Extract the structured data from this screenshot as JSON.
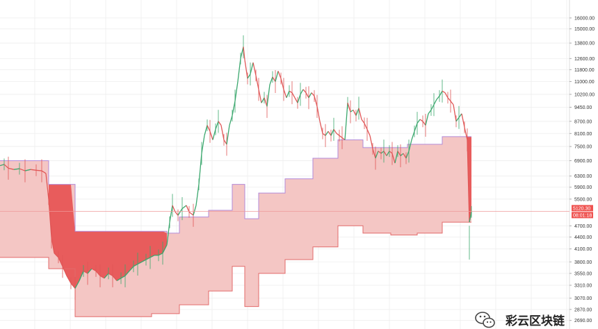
{
  "chart_data": {
    "type": "line",
    "title": "",
    "xlabel": "",
    "ylabel": "",
    "y_scale": "log",
    "ylim": [
      2600,
      17500
    ],
    "grid": true,
    "y_ticks": [
      {
        "label": "16000.00",
        "value": 16000
      },
      {
        "label": "15000.00",
        "value": 15000
      },
      {
        "label": "13800.00",
        "value": 13800
      },
      {
        "label": "12600.00",
        "value": 12600
      },
      {
        "label": "11800.00",
        "value": 11800
      },
      {
        "label": "11000.00",
        "value": 11000
      },
      {
        "label": "10200.00",
        "value": 10200
      },
      {
        "label": "9450.00",
        "value": 9450
      },
      {
        "label": "8700.00",
        "value": 8700
      },
      {
        "label": "8100.00",
        "value": 8100
      },
      {
        "label": "7500.00",
        "value": 7500
      },
      {
        "label": "6900.00",
        "value": 6900
      },
      {
        "label": "6300.00",
        "value": 6300
      },
      {
        "label": "5900.00",
        "value": 5900
      },
      {
        "label": "5500.00",
        "value": 5500
      },
      {
        "label": "4700.00",
        "value": 4700
      },
      {
        "label": "4400.00",
        "value": 4400
      },
      {
        "label": "4100.00",
        "value": 4100
      },
      {
        "label": "3800.00",
        "value": 3800
      },
      {
        "label": "3550.00",
        "value": 3550
      },
      {
        "label": "3310.00",
        "value": 3310
      },
      {
        "label": "3070.00",
        "value": 3070
      },
      {
        "label": "2870.00",
        "value": 2870
      },
      {
        "label": "2690.00",
        "value": 2690
      }
    ],
    "price": [
      [
        0,
        6700
      ],
      [
        6,
        6750
      ],
      [
        12,
        6600
      ],
      [
        20,
        6550
      ],
      [
        28,
        6580
      ],
      [
        36,
        6500
      ],
      [
        44,
        6550
      ],
      [
        52,
        6520
      ],
      [
        60,
        6500
      ],
      [
        66,
        6400
      ],
      [
        70,
        5500
      ],
      [
        74,
        4400
      ],
      [
        78,
        4000
      ],
      [
        84,
        3900
      ],
      [
        90,
        3700
      ],
      [
        96,
        3500
      ],
      [
        102,
        3350
      ],
      [
        108,
        3250
      ],
      [
        114,
        3400
      ],
      [
        120,
        3600
      ],
      [
        126,
        3550
      ],
      [
        132,
        3650
      ],
      [
        138,
        3600
      ],
      [
        144,
        3500
      ],
      [
        150,
        3450
      ],
      [
        156,
        3550
      ],
      [
        162,
        3500
      ],
      [
        168,
        3400
      ],
      [
        174,
        3450
      ],
      [
        180,
        3500
      ],
      [
        186,
        3600
      ],
      [
        192,
        3700
      ],
      [
        198,
        3750
      ],
      [
        204,
        3800
      ],
      [
        210,
        3850
      ],
      [
        216,
        3900
      ],
      [
        222,
        3950
      ],
      [
        228,
        3950
      ],
      [
        234,
        4000
      ],
      [
        240,
        4200
      ],
      [
        244,
        4800
      ],
      [
        248,
        5300
      ],
      [
        252,
        5100
      ],
      [
        256,
        5000
      ],
      [
        262,
        5200
      ],
      [
        268,
        5300
      ],
      [
        272,
        5100
      ],
      [
        278,
        5000
      ],
      [
        282,
        5300
      ],
      [
        286,
        6000
      ],
      [
        290,
        7200
      ],
      [
        294,
        8000
      ],
      [
        298,
        8500
      ],
      [
        302,
        8200
      ],
      [
        306,
        7800
      ],
      [
        310,
        8300
      ],
      [
        314,
        8700
      ],
      [
        318,
        8500
      ],
      [
        322,
        7800
      ],
      [
        326,
        7600
      ],
      [
        330,
        8500
      ],
      [
        334,
        9000
      ],
      [
        338,
        9800
      ],
      [
        342,
        11000
      ],
      [
        346,
        12600
      ],
      [
        350,
        13500
      ],
      [
        352,
        12500
      ],
      [
        356,
        11200
      ],
      [
        360,
        11500
      ],
      [
        364,
        12300
      ],
      [
        368,
        11400
      ],
      [
        372,
        10500
      ],
      [
        376,
        9700
      ],
      [
        380,
        10000
      ],
      [
        384,
        9500
      ],
      [
        388,
        10800
      ],
      [
        392,
        11300
      ],
      [
        396,
        11000
      ],
      [
        400,
        11700
      ],
      [
        404,
        11200
      ],
      [
        408,
        10500
      ],
      [
        412,
        10000
      ],
      [
        416,
        10400
      ],
      [
        420,
        10300
      ],
      [
        424,
        10000
      ],
      [
        428,
        9700
      ],
      [
        432,
        10200
      ],
      [
        436,
        10500
      ],
      [
        440,
        10300
      ],
      [
        444,
        10000
      ],
      [
        448,
        10300
      ],
      [
        452,
        10100
      ],
      [
        456,
        9500
      ],
      [
        460,
        8700
      ],
      [
        464,
        8100
      ],
      [
        468,
        8000
      ],
      [
        472,
        8200
      ],
      [
        476,
        8000
      ],
      [
        480,
        8300
      ],
      [
        484,
        8100
      ],
      [
        488,
        8000
      ],
      [
        492,
        7900
      ],
      [
        496,
        7800
      ],
      [
        500,
        9700
      ],
      [
        504,
        9200
      ],
      [
        508,
        9300
      ],
      [
        512,
        9000
      ],
      [
        516,
        9400
      ],
      [
        520,
        8800
      ],
      [
        524,
        8600
      ],
      [
        528,
        8300
      ],
      [
        532,
        8000
      ],
      [
        536,
        7400
      ],
      [
        540,
        7000
      ],
      [
        544,
        7300
      ],
      [
        548,
        7200
      ],
      [
        552,
        7300
      ],
      [
        556,
        7100
      ],
      [
        560,
        7300
      ],
      [
        564,
        7200
      ],
      [
        568,
        6800
      ],
      [
        572,
        7300
      ],
      [
        576,
        7100
      ],
      [
        580,
        7200
      ],
      [
        584,
        7000
      ],
      [
        588,
        7300
      ],
      [
        592,
        7800
      ],
      [
        596,
        8200
      ],
      [
        600,
        8600
      ],
      [
        604,
        8800
      ],
      [
        608,
        8700
      ],
      [
        612,
        8500
      ],
      [
        616,
        9100
      ],
      [
        620,
        9300
      ],
      [
        624,
        9600
      ],
      [
        628,
        9900
      ],
      [
        632,
        10100
      ],
      [
        636,
        10400
      ],
      [
        640,
        10300
      ],
      [
        644,
        10000
      ],
      [
        648,
        9800
      ],
      [
        652,
        9600
      ],
      [
        656,
        8700
      ],
      [
        660,
        8900
      ],
      [
        664,
        9100
      ],
      [
        668,
        8400
      ],
      [
        672,
        7800
      ],
      [
        675,
        4800
      ],
      [
        678,
        5100
      ]
    ],
    "upper_band": [
      [
        0,
        6900
      ],
      [
        70,
        6900
      ],
      [
        70,
        6000
      ],
      [
        108,
        6000
      ],
      [
        108,
        4550
      ],
      [
        240,
        4550
      ],
      [
        240,
        4500
      ],
      [
        258,
        4500
      ],
      [
        258,
        4950
      ],
      [
        300,
        4950
      ],
      [
        300,
        5150
      ],
      [
        334,
        5150
      ],
      [
        334,
        6000
      ],
      [
        352,
        6000
      ],
      [
        352,
        4900
      ],
      [
        372,
        4900
      ],
      [
        372,
        5700
      ],
      [
        410,
        5700
      ],
      [
        410,
        6200
      ],
      [
        450,
        6200
      ],
      [
        450,
        7000
      ],
      [
        486,
        7000
      ],
      [
        486,
        7800
      ],
      [
        522,
        7800
      ],
      [
        522,
        7450
      ],
      [
        586,
        7450
      ],
      [
        586,
        7600
      ],
      [
        636,
        7600
      ],
      [
        636,
        7950
      ],
      [
        678,
        7950
      ]
    ],
    "lower_band": [
      [
        0,
        3900
      ],
      [
        70,
        3900
      ],
      [
        70,
        3650
      ],
      [
        108,
        3650
      ],
      [
        108,
        2750
      ],
      [
        218,
        2750
      ],
      [
        218,
        2800
      ],
      [
        258,
        2800
      ],
      [
        258,
        2950
      ],
      [
        300,
        2950
      ],
      [
        300,
        3200
      ],
      [
        334,
        3200
      ],
      [
        334,
        3700
      ],
      [
        352,
        3700
      ],
      [
        352,
        2920
      ],
      [
        372,
        2920
      ],
      [
        372,
        3550
      ],
      [
        410,
        3550
      ],
      [
        410,
        3850
      ],
      [
        450,
        3850
      ],
      [
        450,
        4150
      ],
      [
        486,
        4150
      ],
      [
        486,
        4700
      ],
      [
        522,
        4700
      ],
      [
        522,
        4500
      ],
      [
        562,
        4500
      ],
      [
        562,
        4450
      ],
      [
        600,
        4450
      ],
      [
        600,
        4500
      ],
      [
        636,
        4500
      ],
      [
        636,
        4800
      ],
      [
        678,
        4800
      ]
    ],
    "last_price": {
      "label": "5120.30",
      "value": 5120.3
    },
    "countdown": {
      "label": "08:01:18"
    },
    "colors": {
      "band_fill": "#f4c6c4",
      "band_line": "#e26a6a",
      "band_fill_strong": "#e85c5c",
      "price_up": "#3aa76d",
      "price_down": "#e05656",
      "upper_line": "#b28ad8",
      "price_tag": "#ef5350",
      "grid": "#eeeeee"
    }
  },
  "watermark": {
    "text": "彩云区块链",
    "icon": "wechat-icon"
  }
}
